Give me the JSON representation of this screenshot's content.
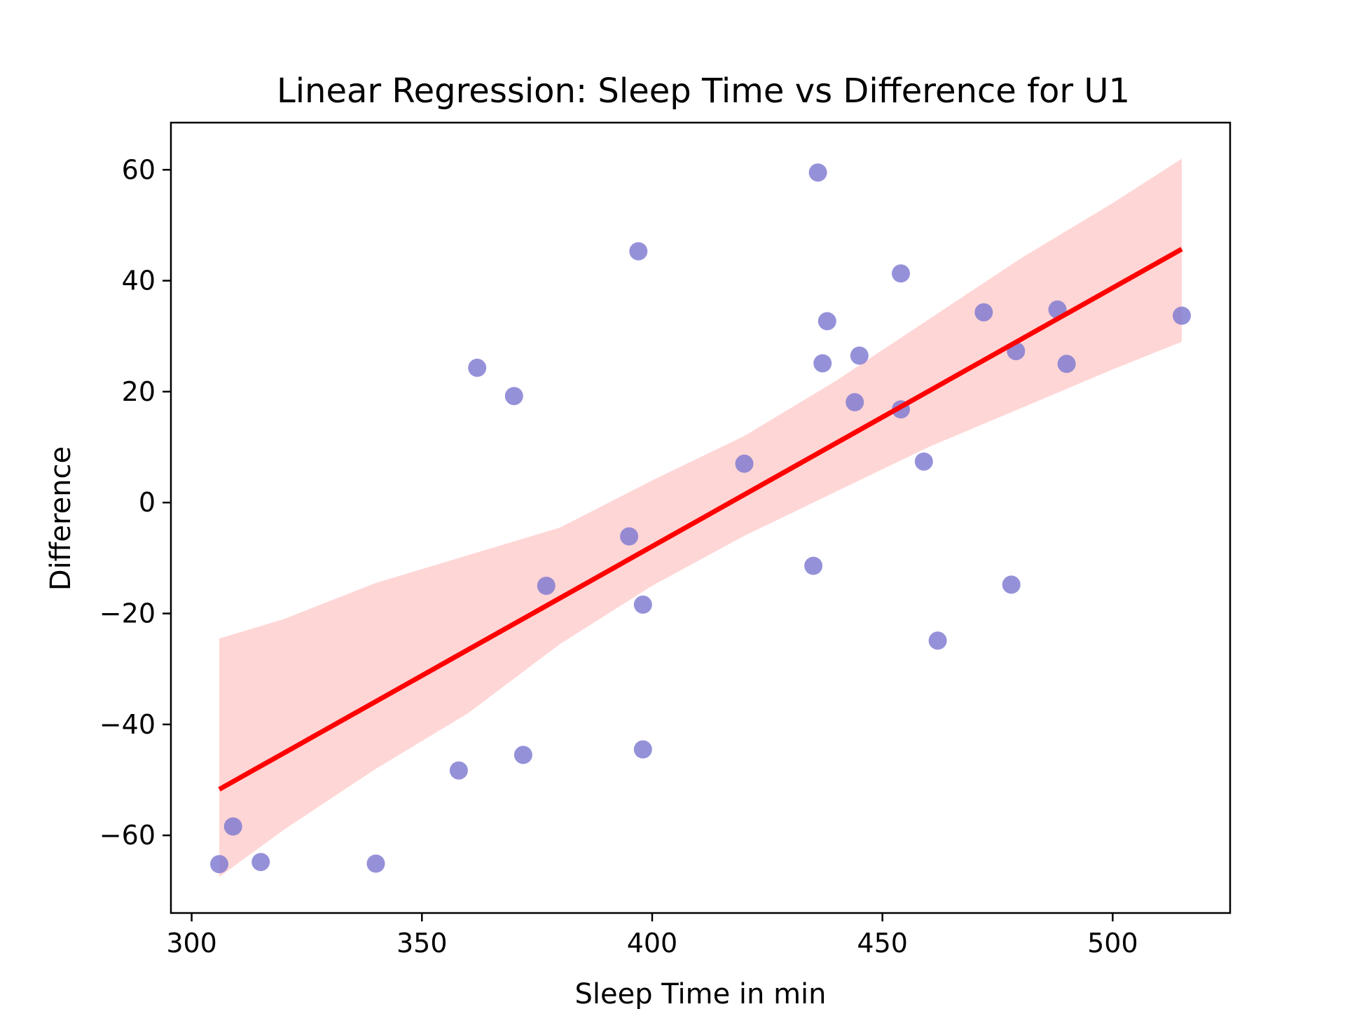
{
  "chart_data": {
    "type": "scatter",
    "title": "Linear Regression: Sleep Time vs Difference for U1",
    "xlabel": "Sleep Time in min",
    "ylabel": "Difference",
    "xlim": [
      295.5,
      525.5
    ],
    "ylim": [
      -74,
      68.5
    ],
    "xticks": [
      300,
      350,
      400,
      450,
      500
    ],
    "yticks": [
      -60,
      -40,
      -20,
      0,
      20,
      40,
      60
    ],
    "grid": false,
    "colors": {
      "points": "#7b76cf",
      "line": "#ff0000",
      "band": "#ffd6d6"
    },
    "points": [
      {
        "x": 306,
        "y": -65.2
      },
      {
        "x": 309,
        "y": -58.4
      },
      {
        "x": 315,
        "y": -64.8
      },
      {
        "x": 340,
        "y": -65.1
      },
      {
        "x": 358,
        "y": -48.3
      },
      {
        "x": 362,
        "y": 24.3
      },
      {
        "x": 370,
        "y": 19.2
      },
      {
        "x": 372,
        "y": -45.5
      },
      {
        "x": 377,
        "y": -15.0
      },
      {
        "x": 395,
        "y": -6.1
      },
      {
        "x": 397,
        "y": 45.3
      },
      {
        "x": 398,
        "y": -18.4
      },
      {
        "x": 398,
        "y": -44.5
      },
      {
        "x": 420,
        "y": 7.0
      },
      {
        "x": 435,
        "y": -11.4
      },
      {
        "x": 436,
        "y": 59.5
      },
      {
        "x": 437,
        "y": 25.1
      },
      {
        "x": 438,
        "y": 32.7
      },
      {
        "x": 444,
        "y": 18.1
      },
      {
        "x": 445,
        "y": 26.5
      },
      {
        "x": 454,
        "y": 41.3
      },
      {
        "x": 454,
        "y": 16.8
      },
      {
        "x": 459,
        "y": 7.4
      },
      {
        "x": 462,
        "y": -24.9
      },
      {
        "x": 472,
        "y": 34.3
      },
      {
        "x": 478,
        "y": -14.8
      },
      {
        "x": 479,
        "y": 27.3
      },
      {
        "x": 488,
        "y": 34.8
      },
      {
        "x": 490,
        "y": 25.0
      },
      {
        "x": 515,
        "y": 33.7
      }
    ],
    "regression_line": {
      "x": [
        306,
        515
      ],
      "y": [
        -51.7,
        45.7
      ]
    },
    "confidence_band": {
      "x": [
        306,
        320,
        340,
        360,
        380,
        400,
        420,
        440,
        460,
        480,
        500,
        515
      ],
      "upper": [
        -24.5,
        -21.0,
        -14.5,
        -9.5,
        -4.5,
        4.0,
        12.0,
        22.0,
        33.0,
        44.0,
        54.0,
        62.0
      ],
      "lower": [
        -67.5,
        -59.0,
        -48.0,
        -38.0,
        -25.5,
        -15.0,
        -6.0,
        2.0,
        10.0,
        17.0,
        24.0,
        29.0
      ]
    }
  }
}
